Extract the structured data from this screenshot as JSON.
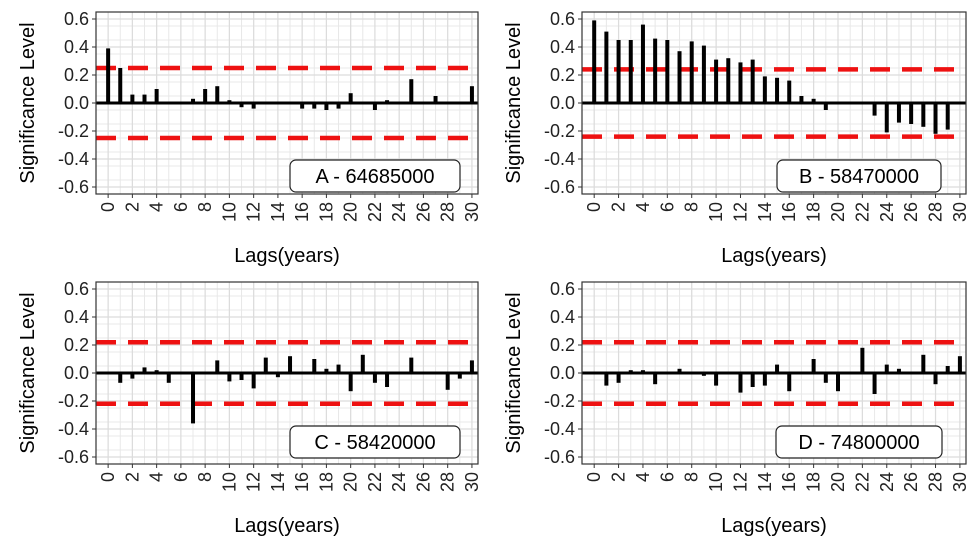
{
  "figure": {
    "y_axis_label": "Significance Level",
    "x_axis_label": "Lags(years)"
  },
  "chart_data": [
    {
      "type": "bar",
      "label": "A - 64685000",
      "xlabel": "Lags(years)",
      "ylabel": "Significance Level",
      "xlim": [
        -1,
        30.5
      ],
      "ylim": [
        -0.65,
        0.65
      ],
      "grid": true,
      "x_ticks": [
        0,
        2,
        4,
        6,
        8,
        10,
        12,
        14,
        16,
        18,
        20,
        22,
        24,
        26,
        28,
        30
      ],
      "y_ticks": [
        -0.6,
        -0.4,
        -0.2,
        0.0,
        0.2,
        0.4,
        0.6
      ],
      "y_tick_labels": [
        "-0.6",
        "-0.4",
        "-0.2",
        "0.0",
        "0.2",
        "0.4",
        "0.6"
      ],
      "significance_level": 0.25,
      "significance_color": "#ee1111",
      "x": [
        0,
        1,
        2,
        3,
        4,
        5,
        6,
        7,
        8,
        9,
        10,
        11,
        12,
        13,
        14,
        15,
        16,
        17,
        18,
        19,
        20,
        21,
        22,
        23,
        24,
        25,
        26,
        27,
        28,
        29,
        30
      ],
      "values": [
        0.39,
        0.25,
        0.06,
        0.06,
        0.1,
        0.0,
        0.0,
        0.03,
        0.1,
        0.12,
        0.02,
        -0.03,
        -0.04,
        0.01,
        0.01,
        0.01,
        -0.04,
        -0.04,
        -0.05,
        -0.04,
        0.07,
        0.0,
        -0.05,
        0.02,
        0.01,
        0.17,
        0.0,
        0.05,
        0.0,
        0.0,
        0.12
      ]
    },
    {
      "type": "bar",
      "label": "B - 58470000",
      "xlabel": "Lags(years)",
      "ylabel": "Significance Level",
      "xlim": [
        -1,
        30.5
      ],
      "ylim": [
        -0.65,
        0.65
      ],
      "grid": true,
      "x_ticks": [
        0,
        2,
        4,
        6,
        8,
        10,
        12,
        14,
        16,
        18,
        20,
        22,
        24,
        26,
        28,
        30
      ],
      "y_ticks": [
        -0.6,
        -0.4,
        -0.2,
        0.0,
        0.2,
        0.4,
        0.6
      ],
      "y_tick_labels": [
        "-0.6",
        "-0.4",
        "-0.2",
        "0.0",
        "0.2",
        "0.4",
        "0.6"
      ],
      "significance_level": 0.24,
      "significance_color": "#ee1111",
      "x": [
        0,
        1,
        2,
        3,
        4,
        5,
        6,
        7,
        8,
        9,
        10,
        11,
        12,
        13,
        14,
        15,
        16,
        17,
        18,
        19,
        20,
        21,
        22,
        23,
        24,
        25,
        26,
        27,
        28,
        29,
        30
      ],
      "values": [
        0.59,
        0.51,
        0.45,
        0.45,
        0.56,
        0.46,
        0.45,
        0.37,
        0.44,
        0.41,
        0.31,
        0.32,
        0.29,
        0.31,
        0.19,
        0.18,
        0.16,
        0.05,
        0.03,
        -0.05,
        0.0,
        -0.01,
        0.0,
        -0.09,
        -0.21,
        -0.14,
        -0.15,
        -0.17,
        -0.22,
        -0.19,
        0.0
      ]
    },
    {
      "type": "bar",
      "label": "C - 58420000",
      "xlabel": "Lags(years)",
      "ylabel": "Significance Level",
      "xlim": [
        -1,
        30.5
      ],
      "ylim": [
        -0.65,
        0.65
      ],
      "grid": true,
      "x_ticks": [
        0,
        2,
        4,
        6,
        8,
        10,
        12,
        14,
        16,
        18,
        20,
        22,
        24,
        26,
        28,
        30
      ],
      "y_ticks": [
        -0.6,
        -0.4,
        -0.2,
        0.0,
        0.2,
        0.4,
        0.6
      ],
      "y_tick_labels": [
        "-0.6",
        "-0.4",
        "-0.2",
        "0.0",
        "0.2",
        "0.4",
        "0.6"
      ],
      "significance_level": 0.22,
      "significance_color": "#ee1111",
      "x": [
        0,
        1,
        2,
        3,
        4,
        5,
        6,
        7,
        8,
        9,
        10,
        11,
        12,
        13,
        14,
        15,
        16,
        17,
        18,
        19,
        20,
        21,
        22,
        23,
        24,
        25,
        26,
        27,
        28,
        29,
        30
      ],
      "values": [
        0.0,
        -0.07,
        -0.04,
        0.04,
        0.02,
        -0.07,
        0.01,
        -0.36,
        0.0,
        0.09,
        -0.06,
        -0.05,
        -0.11,
        0.11,
        -0.03,
        0.12,
        0.0,
        0.1,
        0.03,
        0.06,
        -0.13,
        0.13,
        -0.07,
        -0.1,
        0.01,
        0.11,
        0.0,
        0.0,
        -0.12,
        -0.04,
        0.09
      ]
    },
    {
      "type": "bar",
      "label": "D - 74800000",
      "xlabel": "Lags(years)",
      "ylabel": "Significance Level",
      "xlim": [
        -1,
        30.5
      ],
      "ylim": [
        -0.65,
        0.65
      ],
      "grid": true,
      "x_ticks": [
        0,
        2,
        4,
        6,
        8,
        10,
        12,
        14,
        16,
        18,
        20,
        22,
        24,
        26,
        28,
        30
      ],
      "y_ticks": [
        -0.6,
        -0.4,
        -0.2,
        0.0,
        0.2,
        0.4,
        0.6
      ],
      "y_tick_labels": [
        "-0.6",
        "-0.4",
        "-0.2",
        "0.0",
        "0.2",
        "0.4",
        "0.6"
      ],
      "significance_level": 0.22,
      "significance_color": "#ee1111",
      "x": [
        0,
        1,
        2,
        3,
        4,
        5,
        6,
        7,
        8,
        9,
        10,
        11,
        12,
        13,
        14,
        15,
        16,
        17,
        18,
        19,
        20,
        21,
        22,
        23,
        24,
        25,
        26,
        27,
        28,
        29,
        30
      ],
      "values": [
        0.0,
        -0.09,
        -0.07,
        0.02,
        0.02,
        -0.08,
        0.0,
        0.03,
        0.0,
        -0.02,
        -0.09,
        -0.01,
        -0.14,
        -0.1,
        -0.09,
        0.06,
        -0.13,
        0.0,
        0.1,
        -0.07,
        -0.13,
        0.0,
        0.18,
        -0.15,
        0.06,
        0.03,
        0.0,
        0.13,
        -0.08,
        0.05,
        0.12
      ]
    }
  ]
}
